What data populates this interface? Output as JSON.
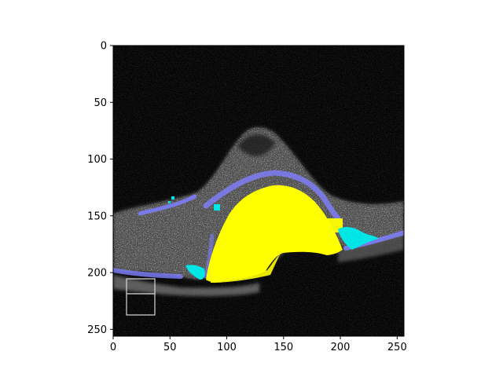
{
  "figure": {
    "x_ticks": [
      "0",
      "50",
      "100",
      "150",
      "200",
      "250"
    ],
    "y_ticks": [
      "0",
      "50",
      "100",
      "150",
      "200",
      "250"
    ],
    "xlim": [
      0,
      256
    ],
    "ylim": [
      256,
      0
    ],
    "overlay_colors": {
      "background": "#000000",
      "retina_texture": "#9a9a9a",
      "boundary_layer": "#7f7fff",
      "large_region": "#ffff00",
      "small_region": "#00e5e5"
    }
  }
}
